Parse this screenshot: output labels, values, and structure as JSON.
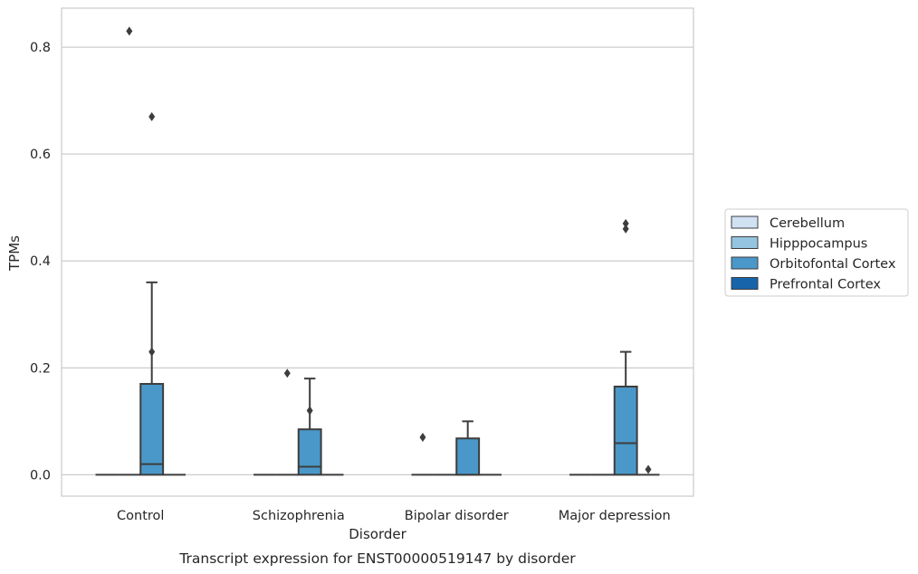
{
  "chart_data": {
    "type": "box",
    "title": "",
    "caption": "Transcript expression for ENST00000519147 by disorder",
    "xlabel": "Disorder",
    "ylabel": "TPMs",
    "ylim": [
      -0.04,
      0.873
    ],
    "yticks": [
      0.0,
      0.2,
      0.4,
      0.6,
      0.8
    ],
    "ytick_labels": [
      "0.0",
      "0.2",
      "0.4",
      "0.6",
      "0.8"
    ],
    "grid": "horizontal",
    "legend_position": "right",
    "categories": [
      "Control",
      "Schizophrenia",
      "Bipolar disorder",
      "Major depression"
    ],
    "series": [
      {
        "name": "Cerebellum",
        "color": "#d0e1f2",
        "boxes": [
          {
            "q1": 0,
            "median": 0,
            "q3": 0,
            "whisker_low": 0,
            "whisker_high": 0,
            "outliers": []
          },
          {
            "q1": 0,
            "median": 0,
            "q3": 0,
            "whisker_low": 0,
            "whisker_high": 0,
            "outliers": []
          },
          {
            "q1": 0,
            "median": 0,
            "q3": 0,
            "whisker_low": 0,
            "whisker_high": 0,
            "outliers": [
              0.07
            ]
          },
          {
            "q1": 0,
            "median": 0,
            "q3": 0,
            "whisker_low": 0,
            "whisker_high": 0,
            "outliers": []
          }
        ]
      },
      {
        "name": "Hipppocampus",
        "color": "#94c4df",
        "boxes": [
          {
            "q1": 0,
            "median": 0,
            "q3": 0,
            "whisker_low": 0,
            "whisker_high": 0,
            "outliers": [
              0.83
            ]
          },
          {
            "q1": 0,
            "median": 0,
            "q3": 0,
            "whisker_low": 0,
            "whisker_high": 0,
            "outliers": [
              0.19
            ]
          },
          {
            "q1": 0,
            "median": 0,
            "q3": 0,
            "whisker_low": 0,
            "whisker_high": 0,
            "outliers": []
          },
          {
            "q1": 0,
            "median": 0,
            "q3": 0,
            "whisker_low": 0,
            "whisker_high": 0,
            "outliers": []
          }
        ]
      },
      {
        "name": "Orbitofontal Cortex",
        "color": "#4a98c9",
        "boxes": [
          {
            "q1": 0,
            "median": 0.02,
            "q3": 0.17,
            "whisker_low": 0,
            "whisker_high": 0.36,
            "outliers": [
              0.67,
              0.23
            ]
          },
          {
            "q1": 0,
            "median": 0.015,
            "q3": 0.085,
            "whisker_low": 0,
            "whisker_high": 0.18,
            "outliers": [
              0.12
            ]
          },
          {
            "q1": 0,
            "median": 0,
            "q3": 0.068,
            "whisker_low": 0,
            "whisker_high": 0.1,
            "outliers": []
          },
          {
            "q1": 0,
            "median": 0.059,
            "q3": 0.165,
            "whisker_low": 0,
            "whisker_high": 0.23,
            "outliers": [
              0.47,
              0.46
            ]
          }
        ]
      },
      {
        "name": "Prefrontal Cortex",
        "color": "#1764ab",
        "boxes": [
          {
            "q1": 0,
            "median": 0,
            "q3": 0,
            "whisker_low": 0,
            "whisker_high": 0,
            "outliers": []
          },
          {
            "q1": 0,
            "median": 0,
            "q3": 0,
            "whisker_low": 0,
            "whisker_high": 0,
            "outliers": []
          },
          {
            "q1": 0,
            "median": 0,
            "q3": 0,
            "whisker_low": 0,
            "whisker_high": 0,
            "outliers": []
          },
          {
            "q1": 0,
            "median": 0,
            "q3": 0,
            "whisker_low": 0,
            "whisker_high": 0,
            "outliers": [
              0.01
            ]
          }
        ]
      }
    ]
  }
}
